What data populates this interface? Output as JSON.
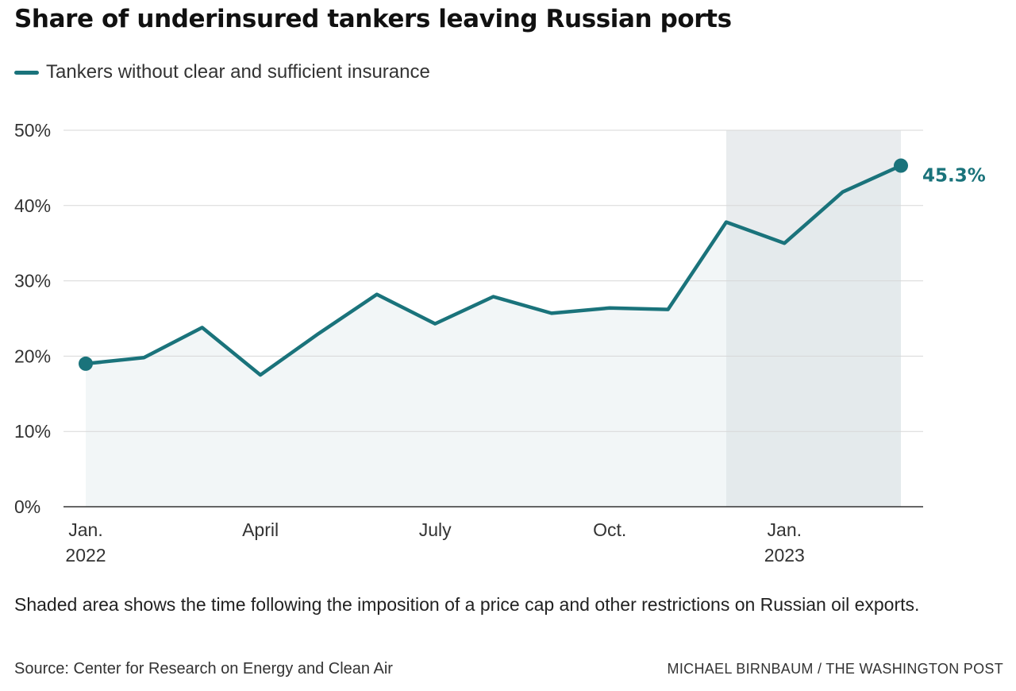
{
  "title": "Share of underinsured tankers leaving Russian ports",
  "legend": {
    "label": "Tankers without clear and sufficient insurance"
  },
  "note": "Shaded area shows the time following the imposition of a price cap and other restrictions on Russian oil exports.",
  "source": "Source: Center for Research on Energy and Clean Air",
  "credit": "MICHAEL BIRNBAUM / THE WASHINGTON POST",
  "colors": {
    "line": "#1a737b",
    "area": "#f2f6f7",
    "shaded_period": "#e9ecee",
    "grid": "#d7d7d7",
    "axis": "#333333"
  },
  "chart_data": {
    "type": "area",
    "x": [
      "2022-01",
      "2022-02",
      "2022-03",
      "2022-04",
      "2022-05",
      "2022-06",
      "2022-07",
      "2022-08",
      "2022-09",
      "2022-10",
      "2022-11",
      "2022-12",
      "2023-01",
      "2023-02",
      "2023-03"
    ],
    "series": [
      {
        "name": "Tankers without clear and sufficient insurance",
        "values": [
          19.0,
          19.8,
          23.8,
          17.5,
          23.0,
          28.2,
          24.3,
          27.9,
          25.7,
          26.4,
          26.2,
          37.8,
          35.0,
          41.8,
          45.3
        ]
      }
    ],
    "ylim": [
      0,
      50
    ],
    "y_ticks": [
      0,
      10,
      20,
      30,
      40,
      50
    ],
    "y_tick_labels": [
      "0%",
      "10%",
      "20%",
      "30%",
      "40%",
      "50%"
    ],
    "x_ticks": [
      {
        "x": "2022-01",
        "label": "Jan.",
        "sublabel": "2022"
      },
      {
        "x": "2022-04",
        "label": "April",
        "sublabel": ""
      },
      {
        "x": "2022-07",
        "label": "July",
        "sublabel": ""
      },
      {
        "x": "2022-10",
        "label": "Oct.",
        "sublabel": ""
      },
      {
        "x": "2023-01",
        "label": "Jan.",
        "sublabel": "2023"
      }
    ],
    "shaded_range": [
      "2022-12",
      "2023-03"
    ],
    "annotations": [
      {
        "x": "2023-03",
        "y": 45.3,
        "text": "45.3%"
      }
    ],
    "endpoint_markers": [
      "2022-01",
      "2023-03"
    ],
    "grid": true
  }
}
